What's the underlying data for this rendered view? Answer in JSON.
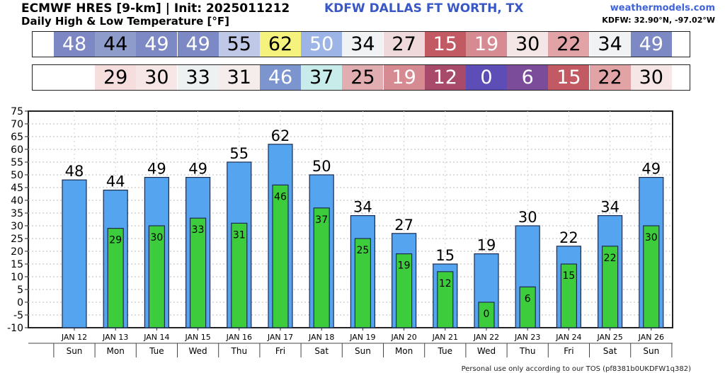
{
  "header": {
    "model_title": "ECMWF HRES [9-km] | Init: 2025011212",
    "subtitle": "Daily High & Low Temperature [°F]",
    "station_title": "KDFW DALLAS FT WORTH, TX",
    "brand": "weathermodels.com",
    "coords": "KDFW: 32.90°N, -97.02°W"
  },
  "footer": {
    "note": "Personal use only according to our TOS (pf8381b0UKDFW1q382)"
  },
  "colors": {
    "high_bar": "#55a4ef",
    "low_bar": "#3ccc3c",
    "bar_edge": "#1c2c50"
  },
  "chart_data": {
    "type": "bar",
    "title": "Daily High & Low Temperature [°F]",
    "categories": [
      "JAN 12",
      "JAN 13",
      "JAN 14",
      "JAN 15",
      "JAN 16",
      "JAN 17",
      "JAN 18",
      "JAN 19",
      "JAN 20",
      "JAN 21",
      "JAN 22",
      "JAN 23",
      "JAN 24",
      "JAN 25",
      "JAN 26"
    ],
    "weekdays": [
      "Sun",
      "Mon",
      "Tue",
      "Wed",
      "Thu",
      "Fri",
      "Sat",
      "Sun",
      "Mon",
      "Tue",
      "Wed",
      "Thu",
      "Fri",
      "Sat",
      "Sun"
    ],
    "series": [
      {
        "name": "High",
        "values": [
          48,
          44,
          49,
          49,
          55,
          62,
          50,
          34,
          27,
          15,
          19,
          30,
          22,
          34,
          49
        ]
      },
      {
        "name": "Low",
        "values": [
          null,
          29,
          30,
          33,
          31,
          46,
          37,
          25,
          19,
          12,
          0,
          6,
          15,
          22,
          30
        ]
      }
    ],
    "xlabel": "",
    "ylabel": "",
    "ylim": [
      -10,
      75
    ],
    "yticks": [
      -10,
      -5,
      0,
      5,
      10,
      15,
      20,
      25,
      30,
      35,
      40,
      45,
      50,
      55,
      60,
      65,
      70,
      75
    ],
    "grid": true
  },
  "strips": {
    "high": [
      {
        "v": "48",
        "bg": "#7c87c3",
        "fg": "#ffffff"
      },
      {
        "v": "44",
        "bg": "#8d9ccb",
        "fg": "#000000"
      },
      {
        "v": "49",
        "bg": "#7d89c4",
        "fg": "#ffffff"
      },
      {
        "v": "49",
        "bg": "#7d89c4",
        "fg": "#ffffff"
      },
      {
        "v": "55",
        "bg": "#bfc8e6",
        "fg": "#000000"
      },
      {
        "v": "62",
        "bg": "#f6f27e",
        "fg": "#000000"
      },
      {
        "v": "50",
        "bg": "#9db5e6",
        "fg": "#ffffff"
      },
      {
        "v": "34",
        "bg": "#f0f2f4",
        "fg": "#000000"
      },
      {
        "v": "27",
        "bg": "#f0d9da",
        "fg": "#000000"
      },
      {
        "v": "15",
        "bg": "#c15a63",
        "fg": "#ffffff"
      },
      {
        "v": "19",
        "bg": "#d68b92",
        "fg": "#ffffff"
      },
      {
        "v": "30",
        "bg": "#f4e6e6",
        "fg": "#000000"
      },
      {
        "v": "22",
        "bg": "#e1a3a6",
        "fg": "#000000"
      },
      {
        "v": "34",
        "bg": "#f0f2f4",
        "fg": "#000000"
      },
      {
        "v": "49",
        "bg": "#7d89c4",
        "fg": "#ffffff"
      }
    ],
    "low": [
      {
        "v": "",
        "bg": "#ffffff",
        "fg": "#000000"
      },
      {
        "v": "29",
        "bg": "#f6dedf",
        "fg": "#000000"
      },
      {
        "v": "30",
        "bg": "#f6e6e6",
        "fg": "#000000"
      },
      {
        "v": "33",
        "bg": "#eef1f2",
        "fg": "#000000"
      },
      {
        "v": "31",
        "bg": "#f5ecec",
        "fg": "#000000"
      },
      {
        "v": "46",
        "bg": "#7d95cf",
        "fg": "#ffffff"
      },
      {
        "v": "37",
        "bg": "#c8ecea",
        "fg": "#000000"
      },
      {
        "v": "25",
        "bg": "#e2adb0",
        "fg": "#000000"
      },
      {
        "v": "19",
        "bg": "#d68b92",
        "fg": "#ffffff"
      },
      {
        "v": "12",
        "bg": "#a84a6a",
        "fg": "#ffffff"
      },
      {
        "v": "0",
        "bg": "#5c4eb6",
        "fg": "#ffffff"
      },
      {
        "v": "6",
        "bg": "#7a4c99",
        "fg": "#ffffff"
      },
      {
        "v": "15",
        "bg": "#c15a63",
        "fg": "#ffffff"
      },
      {
        "v": "22",
        "bg": "#e1a3a6",
        "fg": "#000000"
      },
      {
        "v": "30",
        "bg": "#f6e6e6",
        "fg": "#000000"
      }
    ]
  }
}
